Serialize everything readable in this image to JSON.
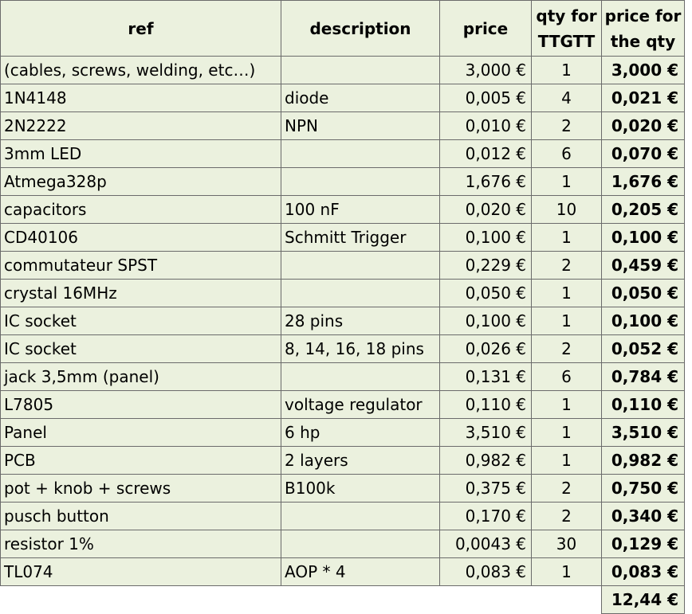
{
  "header": {
    "ref": "ref",
    "description": "description",
    "price": "price",
    "qty_line1": "qty for",
    "qty_line2": "TTGTT",
    "total_line1": "price for",
    "total_line2": "the qty"
  },
  "rows": [
    {
      "ref": "(cables, screws, welding, etc…)",
      "description": "",
      "price": "3,000 €",
      "qty": "1",
      "total": "3,000 €"
    },
    {
      "ref": "1N4148",
      "description": "diode",
      "price": "0,005 €",
      "qty": "4",
      "total": "0,021 €"
    },
    {
      "ref": "2N2222",
      "description": "NPN",
      "price": "0,010 €",
      "qty": "2",
      "total": "0,020 €"
    },
    {
      "ref": "3mm LED",
      "description": "",
      "price": "0,012 €",
      "qty": "6",
      "total": "0,070 €"
    },
    {
      "ref": "Atmega328p",
      "description": "",
      "price": "1,676 €",
      "qty": "1",
      "total": "1,676 €"
    },
    {
      "ref": "capacitors",
      "description": "100 nF",
      "price": "0,020 €",
      "qty": "10",
      "total": "0,205 €"
    },
    {
      "ref": "CD40106",
      "description": "Schmitt Trigger",
      "price": "0,100 €",
      "qty": "1",
      "total": "0,100 €"
    },
    {
      "ref": "commutateur SPST",
      "description": "",
      "price": "0,229 €",
      "qty": "2",
      "total": "0,459 €"
    },
    {
      "ref": "crystal 16MHz",
      "description": "",
      "price": "0,050 €",
      "qty": "1",
      "total": "0,050 €"
    },
    {
      "ref": "IC socket",
      "description": "28 pins",
      "price": "0,100 €",
      "qty": "1",
      "total": "0,100 €"
    },
    {
      "ref": "IC socket",
      "description": "8, 14, 16, 18 pins",
      "price": "0,026 €",
      "qty": "2",
      "total": "0,052 €"
    },
    {
      "ref": "jack 3,5mm (panel)",
      "description": "",
      "price": "0,131 €",
      "qty": "6",
      "total": "0,784 €"
    },
    {
      "ref": "L7805",
      "description": "voltage regulator",
      "price": "0,110 €",
      "qty": "1",
      "total": "0,110 €"
    },
    {
      "ref": "Panel",
      "description": "6 hp",
      "price": "3,510 €",
      "qty": "1",
      "total": "3,510 €"
    },
    {
      "ref": "PCB",
      "description": "2 layers",
      "price": "0,982 €",
      "qty": "1",
      "total": "0,982 €"
    },
    {
      "ref": "pot + knob + screws",
      "description": "B100k",
      "price": "0,375 €",
      "qty": "2",
      "total": "0,750 €"
    },
    {
      "ref": "pusch button",
      "description": "",
      "price": "0,170 €",
      "qty": "2",
      "total": "0,340 €"
    },
    {
      "ref": "resistor 1%",
      "description": "",
      "price": "0,0043 €",
      "qty": "30",
      "total": "0,129 €"
    },
    {
      "ref": "TL074",
      "description": "AOP * 4",
      "price": "0,083 €",
      "qty": "1",
      "total": "0,083 €"
    }
  ],
  "grand_total": "12,44 €"
}
